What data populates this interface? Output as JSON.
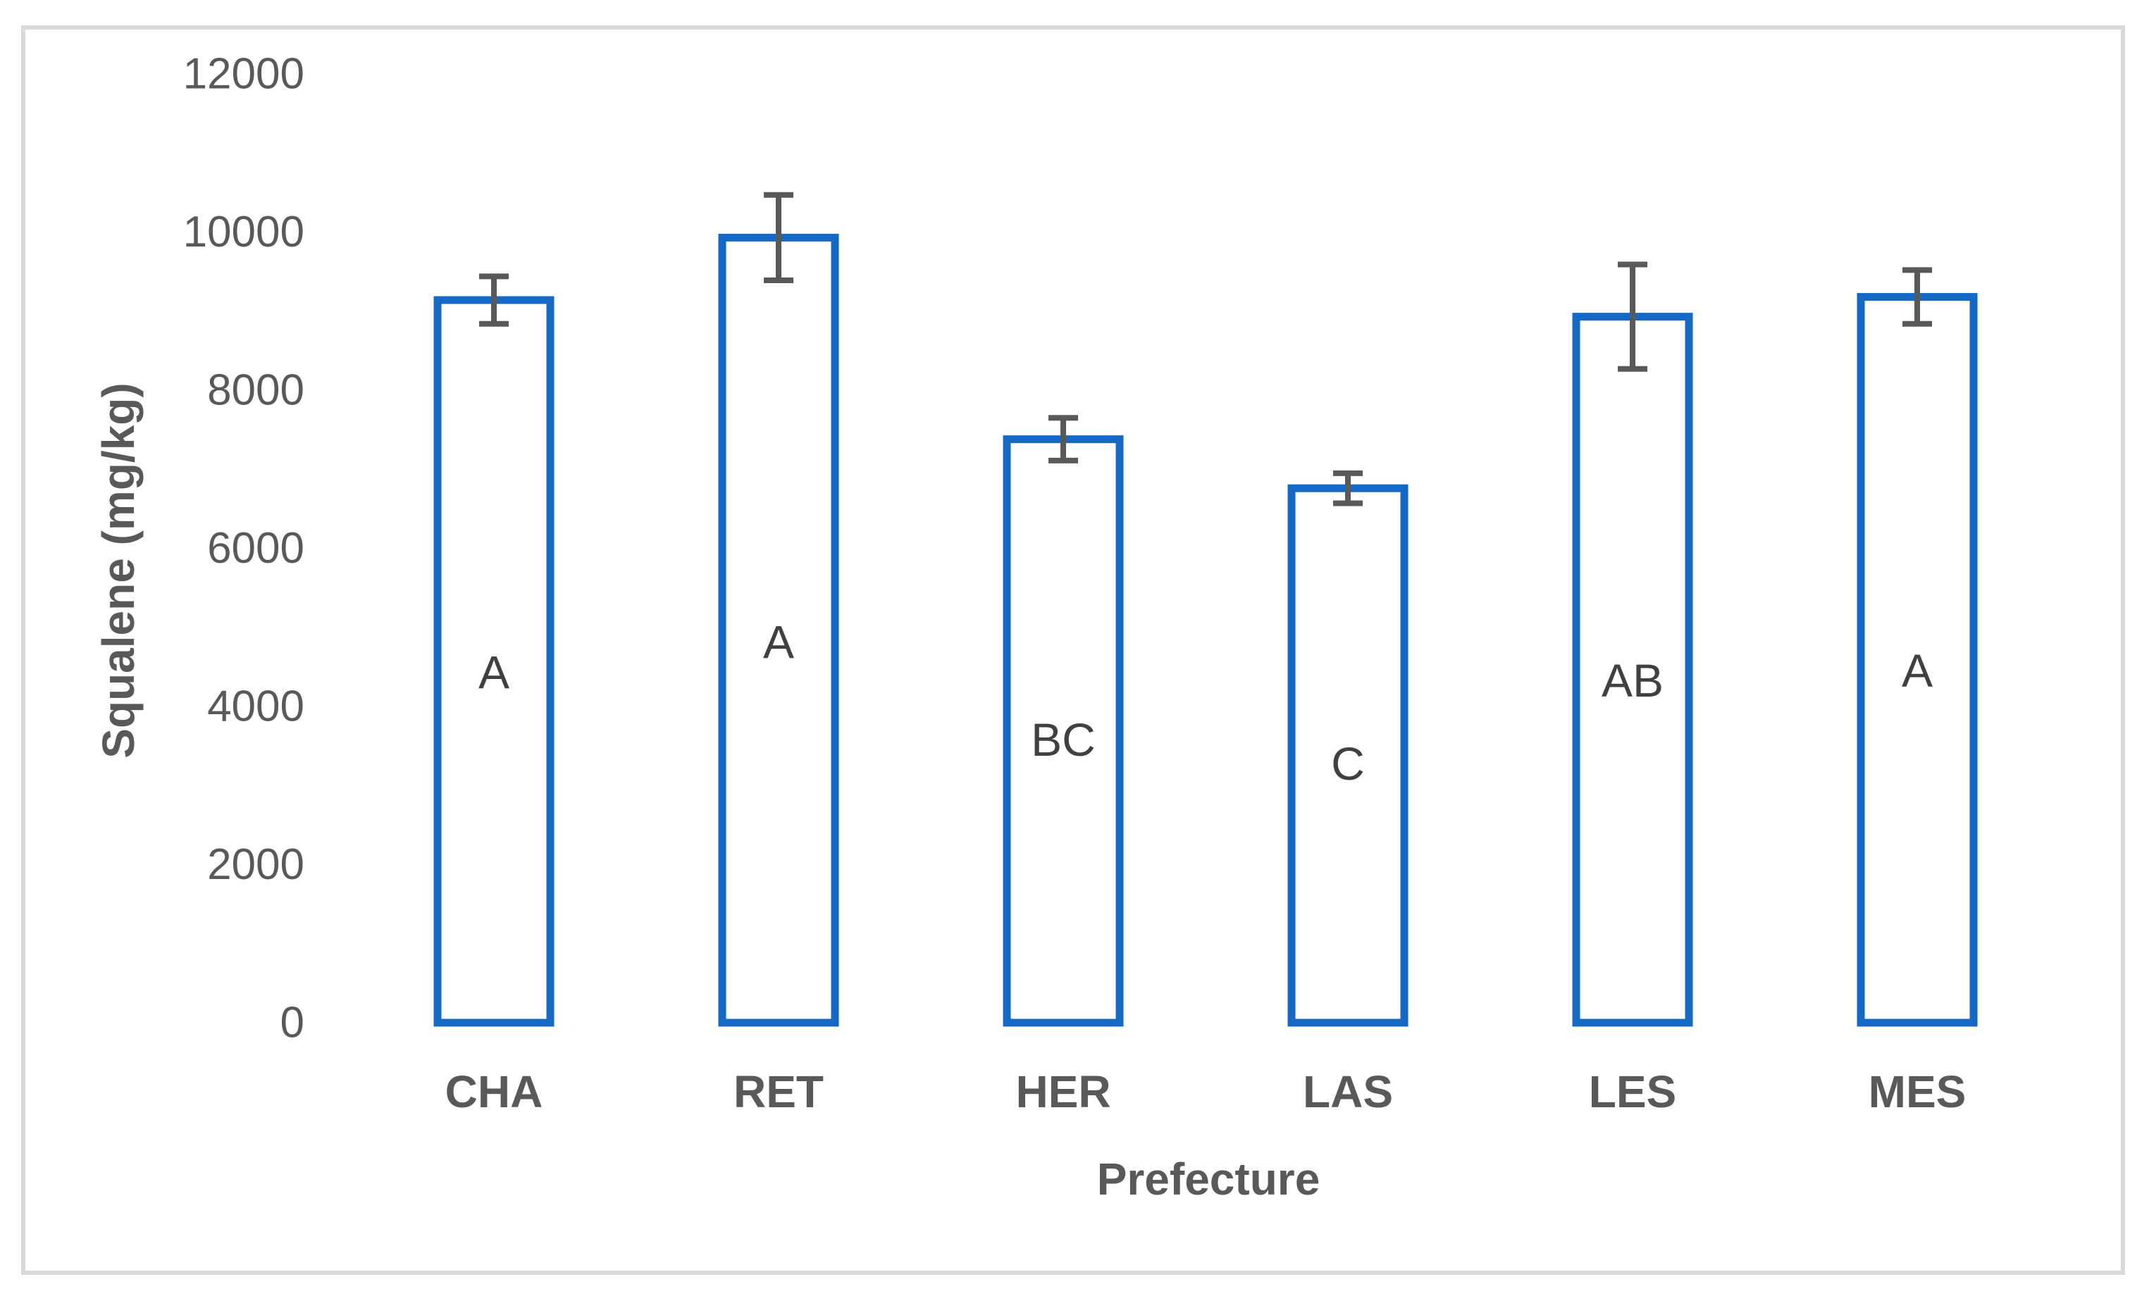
{
  "page": {
    "background": "#FFFFFF",
    "frame_border_color": "#D9D9D9"
  },
  "colors": {
    "bar_outline": "#1569C5",
    "bar_fill": "#FFFFFF",
    "error_bar": "#595959",
    "axis_text": "#595959",
    "bar_letter_text": "#404040",
    "frame": "#D9D9D9"
  },
  "chart_data": {
    "type": "bar",
    "title": "",
    "xlabel": "Prefecture",
    "ylabel": "Squalene (mg/kg)",
    "categories": [
      "CHA",
      "RET",
      "HER",
      "LAS",
      "LES",
      "MES"
    ],
    "values": [
      9140,
      9930,
      7380,
      6760,
      8930,
      9180
    ],
    "error_bars": [
      300,
      540,
      270,
      190,
      660,
      340
    ],
    "bar_labels": [
      "A",
      "A",
      "BC",
      "C",
      "AB",
      "A"
    ],
    "ylim": [
      0,
      12000
    ],
    "ytick_step": 2000,
    "ytick_labels": [
      "0",
      "2000",
      "4000",
      "6000",
      "8000",
      "10000",
      "12000"
    ],
    "grid": false,
    "legend": false,
    "bar_style": "outline-only",
    "error_bar_style": "caps-both-ends"
  }
}
